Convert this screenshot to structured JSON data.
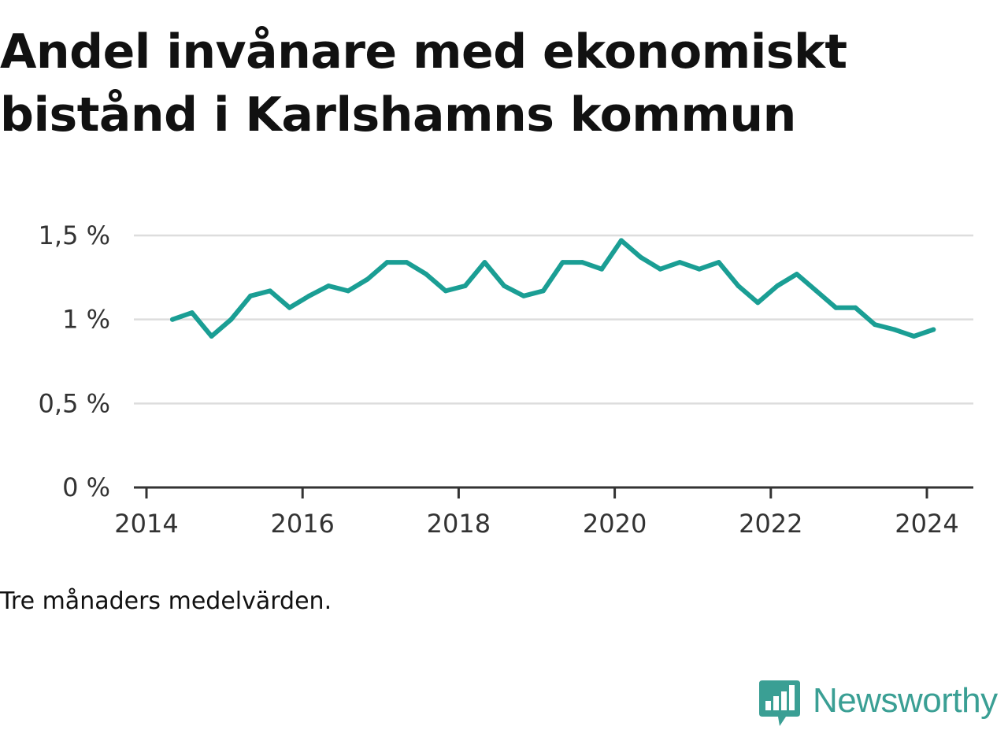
{
  "title": "Andel invånare med ekonomiskt bistånd i Karlshamns kommun",
  "note": "Tre månaders medelvärden.",
  "brand": {
    "name": "Newsworthy",
    "logo_icon": "bar-chart-speech-bubble-icon",
    "color": "#3a9f94"
  },
  "colors": {
    "line": "#1a9e94",
    "grid": "#dddddd",
    "axis": "#333333"
  },
  "chart_data": {
    "type": "line",
    "title": "Andel invånare med ekonomiskt bistånd i Karlshamns kommun",
    "xlabel": "",
    "ylabel": "",
    "x_ticks": [
      "2014",
      "2016",
      "2018",
      "2020",
      "2022",
      "2024"
    ],
    "y_ticks": [
      "0 %",
      "0,5 %",
      "1 %",
      "1,5 %"
    ],
    "ylim": [
      0,
      1.5
    ],
    "xlim": [
      "2014-01",
      "2024-12"
    ],
    "grid": true,
    "series": [
      {
        "x": [
          "2014-05",
          "2014-08",
          "2014-11",
          "2015-02",
          "2015-05",
          "2015-08",
          "2015-11",
          "2016-02",
          "2016-05",
          "2016-08",
          "2016-11",
          "2017-02",
          "2017-05",
          "2017-08",
          "2017-11",
          "2018-02",
          "2018-05",
          "2018-08",
          "2018-11",
          "2019-02",
          "2019-05",
          "2019-08",
          "2019-11",
          "2020-02",
          "2020-05",
          "2020-08",
          "2020-11",
          "2021-02",
          "2021-05",
          "2021-08",
          "2021-11",
          "2022-02",
          "2022-05",
          "2022-08",
          "2022-11",
          "2023-02",
          "2023-05",
          "2023-08",
          "2023-11",
          "2024-02"
        ],
        "values": [
          1.0,
          1.04,
          0.9,
          1.0,
          1.14,
          1.17,
          1.07,
          1.14,
          1.2,
          1.17,
          1.24,
          1.34,
          1.34,
          1.27,
          1.17,
          1.2,
          1.34,
          1.2,
          1.14,
          1.17,
          1.34,
          1.34,
          1.3,
          1.47,
          1.37,
          1.3,
          1.34,
          1.3,
          1.34,
          1.2,
          1.1,
          1.2,
          1.27,
          1.17,
          1.07,
          1.07,
          0.97,
          0.94,
          0.9,
          0.94
        ]
      }
    ]
  }
}
